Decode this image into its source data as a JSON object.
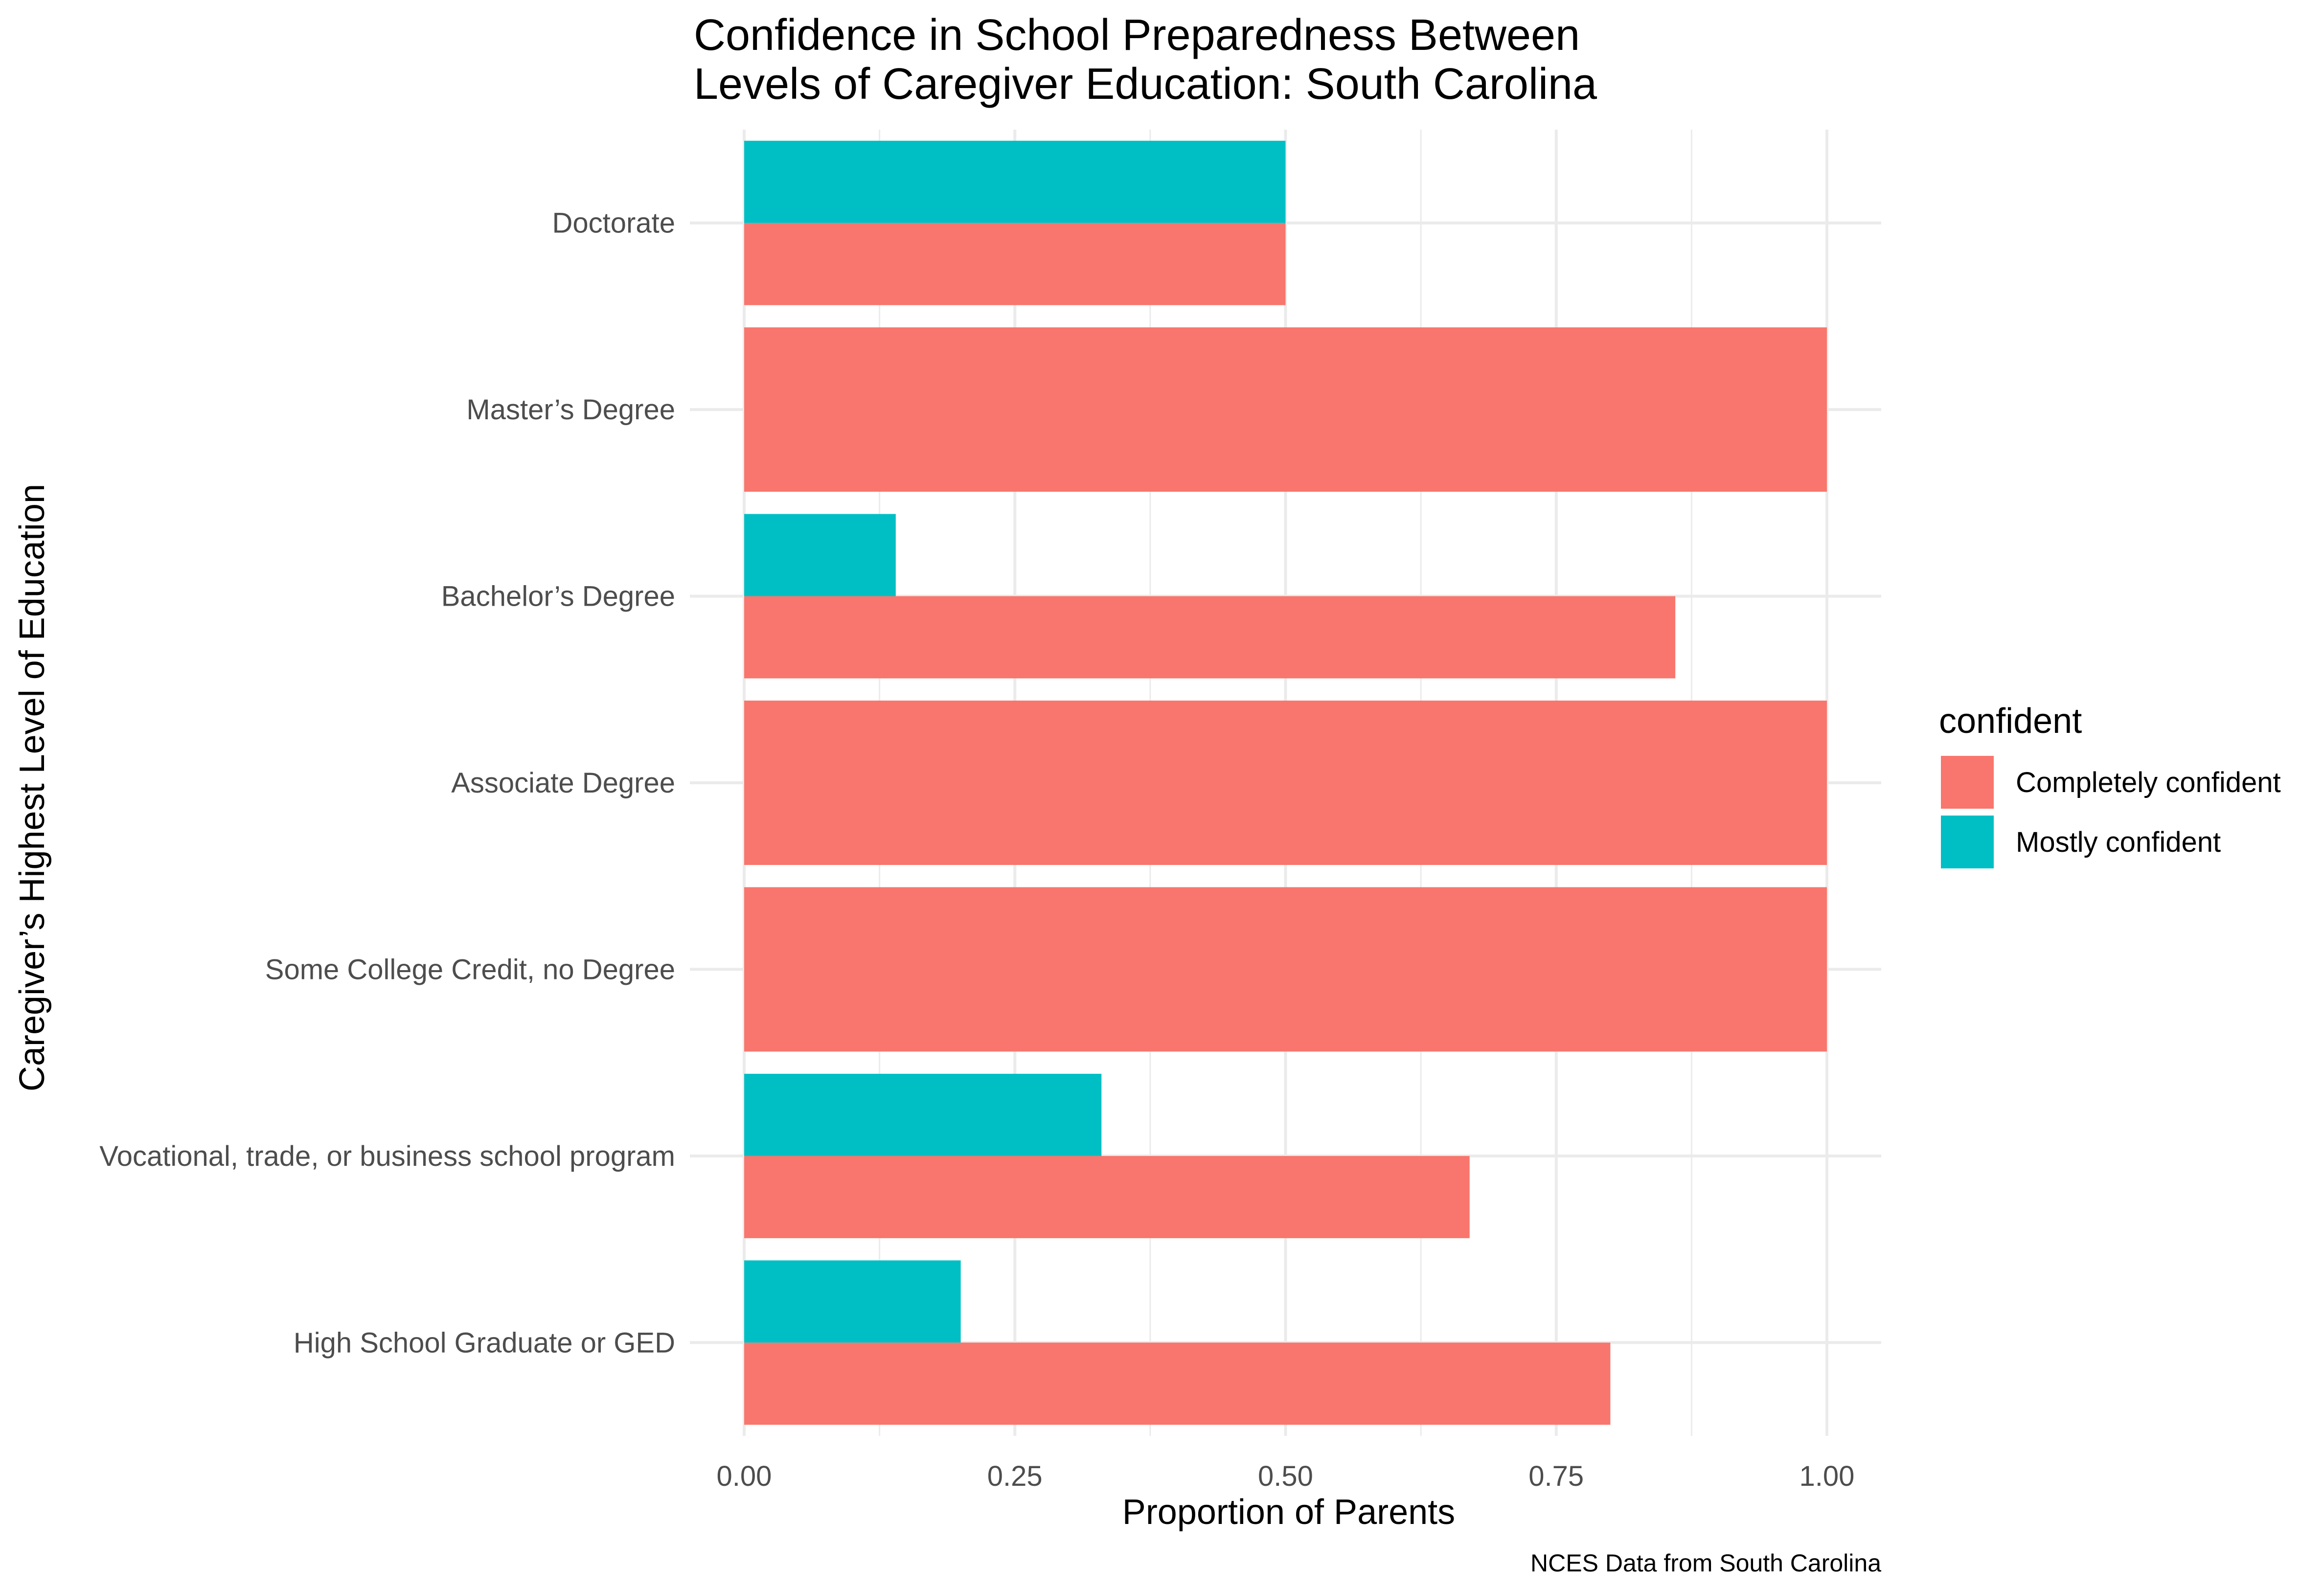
{
  "chart_data": {
    "type": "bar",
    "orientation": "horizontal",
    "title_lines": [
      "Confidence in School Preparedness Between",
      "Levels of Caregiver Education: South Carolina"
    ],
    "xlabel": "Proportion of Parents",
    "ylabel": "Caregiver’s Highest Level of Education",
    "caption": "NCES Data from South Carolina",
    "xlim": [
      0,
      1.05
    ],
    "x_ticks": [
      "0.00",
      "0.25",
      "0.50",
      "0.75",
      "1.00"
    ],
    "categories": [
      "High School Graduate or GED",
      "Vocational, trade, or business school program",
      "Some College Credit, no Degree",
      "Associate Degree",
      "Bachelor’s Degree",
      "Master’s Degree",
      "Doctorate"
    ],
    "series": [
      {
        "name": "Completely confident",
        "color": "#F8766D",
        "values": [
          0.8,
          0.67,
          1.0,
          1.0,
          0.86,
          1.0,
          0.5
        ]
      },
      {
        "name": "Mostly confident",
        "color": "#00BFC4",
        "values": [
          0.2,
          0.33,
          0,
          0,
          0.14,
          0,
          0.5
        ]
      }
    ],
    "legend": {
      "title": "confident",
      "position": "right"
    },
    "grid": true
  }
}
